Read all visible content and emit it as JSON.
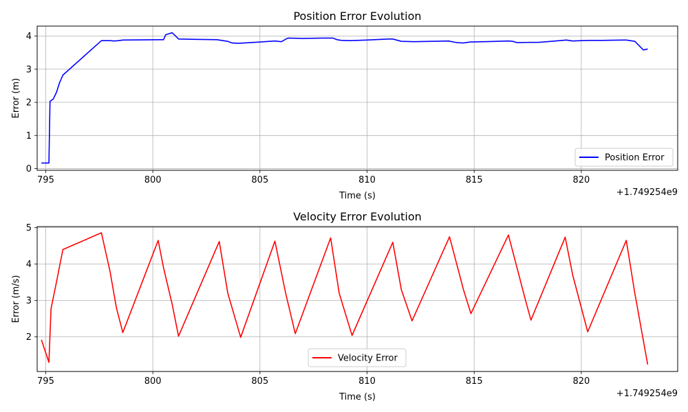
{
  "chart_data": [
    {
      "type": "line",
      "title": "Position Error Evolution",
      "xlabel": "Time (s)",
      "ylabel": "Error (m)",
      "offset_label": "+1.749254e9",
      "xlim": [
        794.6,
        824.5
      ],
      "ylim": [
        -0.05,
        4.3
      ],
      "xticks": [
        795,
        800,
        805,
        810,
        815,
        820
      ],
      "yticks": [
        0,
        1,
        2,
        3,
        4
      ],
      "grid": true,
      "legend": "lower-right",
      "series": [
        {
          "name": "Position Error",
          "color": "#0000ff",
          "x": [
            794.8,
            795.15,
            795.2,
            795.35,
            795.5,
            795.65,
            795.8,
            797.6,
            797.8,
            798.0,
            798.2,
            798.4,
            798.6,
            800.3,
            800.5,
            800.6,
            800.8,
            800.9,
            801.0,
            801.2,
            802.0,
            803.0,
            803.2,
            803.5,
            803.7,
            804.0,
            805.0,
            805.7,
            806.0,
            806.3,
            807.0,
            808.0,
            808.4,
            808.6,
            808.8,
            809.2,
            810.0,
            811.0,
            811.2,
            811.6,
            812.2,
            813.0,
            813.8,
            814.2,
            814.5,
            814.8,
            815.5,
            816.6,
            816.8,
            817.0,
            817.6,
            818.0,
            818.8,
            819.3,
            819.6,
            820.0,
            820.4,
            821.0,
            822.0,
            822.1,
            822.5,
            822.9,
            823.1
          ],
          "y": [
            0.17,
            0.17,
            2.03,
            2.1,
            2.3,
            2.6,
            2.82,
            3.86,
            3.86,
            3.86,
            3.85,
            3.86,
            3.88,
            3.89,
            3.89,
            4.04,
            4.08,
            4.1,
            4.04,
            3.91,
            3.9,
            3.89,
            3.87,
            3.84,
            3.79,
            3.78,
            3.82,
            3.85,
            3.83,
            3.94,
            3.93,
            3.94,
            3.94,
            3.89,
            3.87,
            3.86,
            3.88,
            3.91,
            3.91,
            3.84,
            3.83,
            3.84,
            3.85,
            3.8,
            3.79,
            3.82,
            3.83,
            3.85,
            3.84,
            3.8,
            3.81,
            3.81,
            3.85,
            3.88,
            3.85,
            3.86,
            3.87,
            3.87,
            3.88,
            3.88,
            3.84,
            3.58,
            3.61
          ]
        }
      ]
    },
    {
      "type": "line",
      "title": "Velocity Error Evolution",
      "xlabel": "Time (s)",
      "ylabel": "Error (m/s)",
      "offset_label": "+1.749254e9",
      "xlim": [
        794.6,
        824.5
      ],
      "ylim": [
        1.05,
        5.03
      ],
      "xticks": [
        795,
        800,
        805,
        810,
        815,
        820
      ],
      "yticks": [
        2,
        3,
        4,
        5
      ],
      "grid": true,
      "legend": "lower-center",
      "series": [
        {
          "name": "Velocity Error",
          "color": "#ff0000",
          "x": [
            794.8,
            795.15,
            795.25,
            795.5,
            795.8,
            797.6,
            798.0,
            798.3,
            798.6,
            800.25,
            800.5,
            800.9,
            801.2,
            803.1,
            803.5,
            804.1,
            805.7,
            806.2,
            806.65,
            808.3,
            808.7,
            809.3,
            811.2,
            811.6,
            812.1,
            813.85,
            814.5,
            814.85,
            816.6,
            817.4,
            817.65,
            819.25,
            819.6,
            820.3,
            822.1,
            822.5,
            823.1
          ],
          "y": [
            1.92,
            1.3,
            2.78,
            3.5,
            4.4,
            4.86,
            3.8,
            2.8,
            2.12,
            4.65,
            3.9,
            2.9,
            2.02,
            4.62,
            3.2,
            1.99,
            4.63,
            3.2,
            2.09,
            4.72,
            3.2,
            2.04,
            4.6,
            3.3,
            2.44,
            4.75,
            3.3,
            2.64,
            4.8,
            3.0,
            2.46,
            4.74,
            3.7,
            2.14,
            4.65,
            3.2,
            1.24
          ]
        }
      ]
    }
  ]
}
